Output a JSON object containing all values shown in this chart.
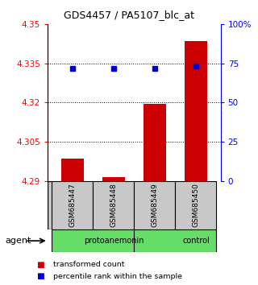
{
  "title": "GDS4457 / PA5107_blc_at",
  "samples": [
    "GSM685447",
    "GSM685448",
    "GSM685449",
    "GSM685450"
  ],
  "bar_values": [
    4.2985,
    4.2915,
    4.3195,
    4.3435
  ],
  "bar_base": 4.29,
  "percentile_values": [
    4.333,
    4.333,
    4.333,
    4.334
  ],
  "left_ylim": [
    4.29,
    4.35
  ],
  "right_ylim": [
    0,
    100
  ],
  "left_yticks": [
    4.29,
    4.305,
    4.32,
    4.335,
    4.35
  ],
  "right_yticks": [
    0,
    25,
    50,
    75,
    100
  ],
  "right_yticklabels": [
    "0",
    "25",
    "50",
    "75",
    "100%"
  ],
  "hline_positions": [
    4.305,
    4.32,
    4.335
  ],
  "bar_color": "#cc0000",
  "percentile_color": "#0000cc",
  "group_xranges": [
    [
      0,
      2,
      "protoanemonin"
    ],
    [
      2,
      4,
      "control"
    ]
  ],
  "agent_label": "agent",
  "legend_items": [
    {
      "label": "transformed count",
      "color": "#cc0000"
    },
    {
      "label": "percentile rank within the sample",
      "color": "#0000cc"
    }
  ],
  "bar_width": 0.55,
  "background_color": "#ffffff",
  "sample_box_color": "#c8c8c8",
  "group_color": "#66dd66"
}
